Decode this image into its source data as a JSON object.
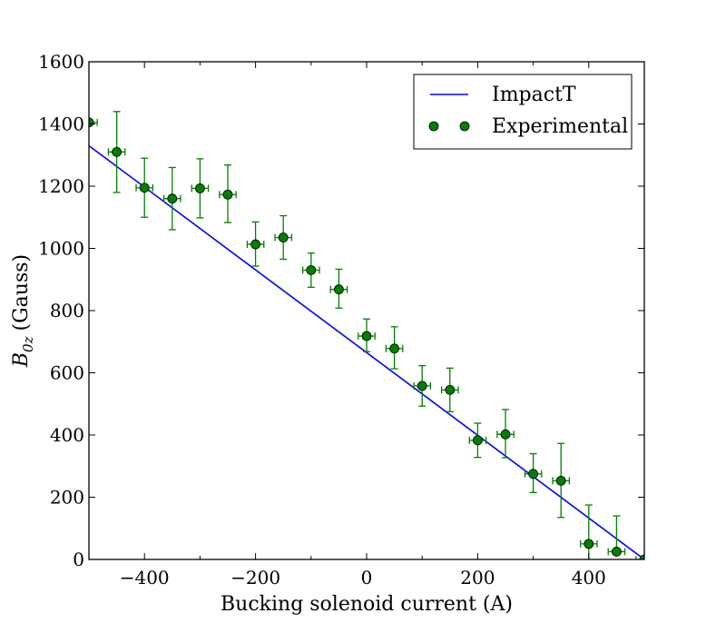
{
  "chart_data": {
    "type": "scatter",
    "title": "",
    "xlabel": "Bucking solenoid current (A)",
    "ylabel_main": "B",
    "ylabel_sub": "0z",
    "ylabel_unit": "(Gauss)",
    "xlim": [
      -500,
      500
    ],
    "ylim": [
      0,
      1600
    ],
    "xticks": [
      -400,
      -200,
      0,
      200,
      400
    ],
    "xtick_labels": [
      "−400",
      "−200",
      "0",
      "200",
      "400"
    ],
    "yticks": [
      0,
      200,
      400,
      600,
      800,
      1000,
      1200,
      1400,
      1600
    ],
    "ytick_labels": [
      "0",
      "200",
      "400",
      "600",
      "800",
      "1000",
      "1200",
      "1400",
      "1600"
    ],
    "grid": false,
    "legend_position": "top-right",
    "series": [
      {
        "name": "ImpactT",
        "kind": "line",
        "color": "#0000ff",
        "x": [
          -500,
          500
        ],
        "y": [
          1330,
          0
        ]
      },
      {
        "name": "Experimental",
        "kind": "errorbar",
        "color": "#008000",
        "x": [
          -500,
          -450,
          -400,
          -350,
          -300,
          -250,
          -200,
          -150,
          -100,
          -50,
          0,
          50,
          100,
          150,
          200,
          250,
          300,
          350,
          400,
          450,
          500
        ],
        "y": [
          1405,
          1310,
          1195,
          1160,
          1193,
          1173,
          1013,
          1035,
          930,
          868,
          718,
          678,
          558,
          545,
          383,
          402,
          275,
          253,
          50,
          25,
          0
        ],
        "xerr": [
          15,
          15,
          15,
          15,
          15,
          15,
          15,
          15,
          15,
          15,
          15,
          15,
          15,
          15,
          15,
          15,
          15,
          15,
          15,
          15,
          15
        ],
        "yerr_low": [
          0,
          130,
          95,
          100,
          95,
          90,
          70,
          70,
          55,
          60,
          50,
          65,
          65,
          70,
          55,
          75,
          60,
          118,
          125,
          0,
          0
        ],
        "yerr_high": [
          0,
          130,
          95,
          100,
          95,
          95,
          72,
          70,
          55,
          65,
          55,
          70,
          65,
          70,
          55,
          80,
          65,
          120,
          125,
          115,
          0
        ]
      }
    ]
  }
}
